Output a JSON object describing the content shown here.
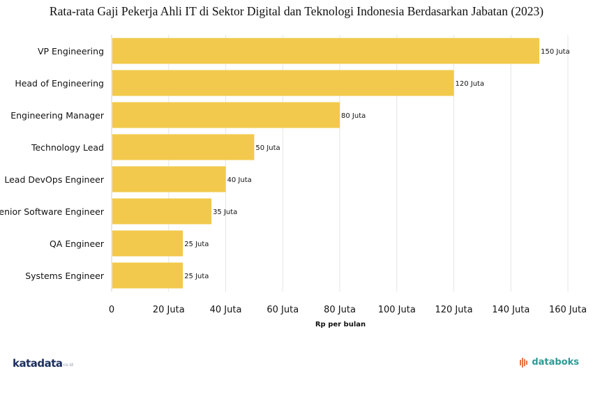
{
  "title": "Rata-rata Gaji Pekerja Ahli IT di Sektor Digital dan Teknologi Indonesia Berdasarkan Jabatan (2023)",
  "chart_data": {
    "type": "bar",
    "orientation": "horizontal",
    "categories": [
      "VP Engineering",
      "Head of Engineering",
      "Engineering Manager",
      "Technology Lead",
      "Lead DevOps Engineer",
      "Senior Software Engineer",
      "QA Engineer ",
      "Systems Engineer "
    ],
    "values": [
      150,
      120,
      80,
      50,
      40,
      35,
      25,
      25
    ],
    "data_labels": [
      "150 Juta",
      "120 Juta",
      "80 Juta",
      "50 Juta",
      "40 Juta",
      "35 Juta",
      "25 Juta",
      "25 Juta"
    ],
    "x_ticks": [
      0,
      20,
      40,
      60,
      80,
      100,
      120,
      140,
      160
    ],
    "x_tick_labels": [
      "0",
      "20 Juta",
      "40 Juta",
      "60 Juta",
      "80 Juta",
      "100 Juta",
      "120 Juta",
      "140 Juta",
      "160 Juta"
    ],
    "xlabel": "Rp per bulan",
    "ylabel": "",
    "xlim": [
      0,
      160
    ],
    "grid": true,
    "bar_color": "#f2c94c"
  },
  "brands": {
    "left_mark": "katadata",
    "left_sub": "co.id",
    "right_mark": "databoks"
  }
}
